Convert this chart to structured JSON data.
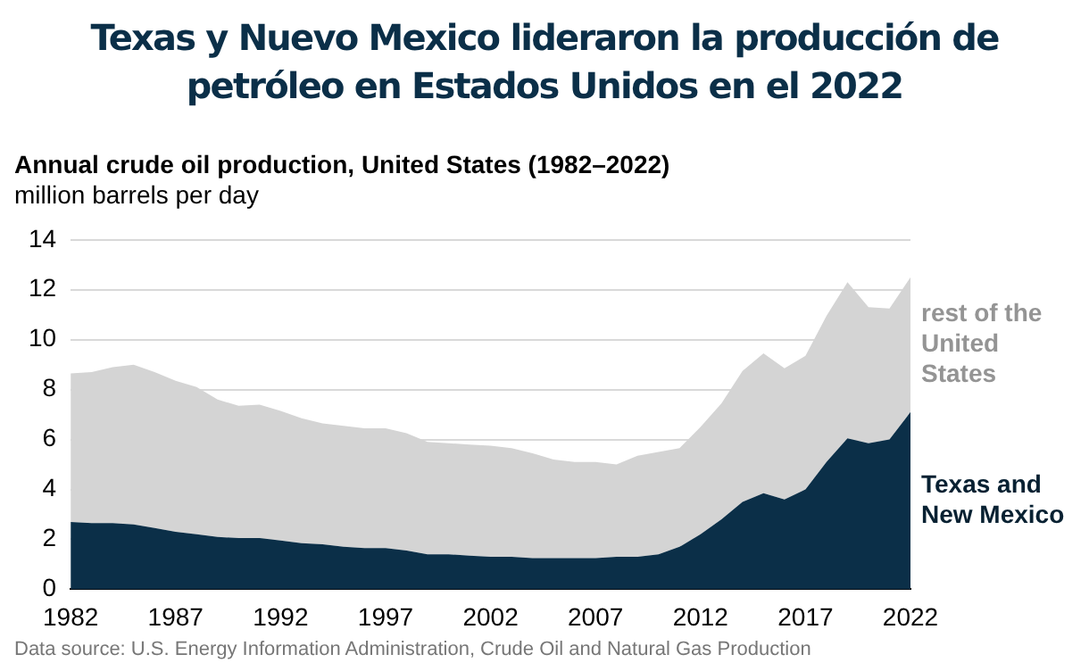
{
  "chart_data": {
    "type": "area",
    "stacked": true,
    "title": "Texas y Nuevo Mexico lideraron la producción de petróleo en Estados Unidos en el 2022",
    "subtitle": "Annual crude oil production, United States (1982–2022)",
    "ylabel": "million barrels per day",
    "annotations": [
      "Data source: U.S. Energy Information Administration, Crude Oil and Natural Gas Production"
    ],
    "x": [
      1982,
      1983,
      1984,
      1985,
      1986,
      1987,
      1988,
      1989,
      1990,
      1991,
      1992,
      1993,
      1994,
      1995,
      1996,
      1997,
      1998,
      1999,
      2000,
      2001,
      2002,
      2003,
      2004,
      2005,
      2006,
      2007,
      2008,
      2009,
      2010,
      2011,
      2012,
      2013,
      2014,
      2015,
      2016,
      2017,
      2018,
      2019,
      2020,
      2021,
      2022
    ],
    "series": [
      {
        "name": "Texas and New Mexico",
        "color": "#0b2f48",
        "values": [
          2.7,
          2.65,
          2.65,
          2.6,
          2.45,
          2.3,
          2.2,
          2.1,
          2.05,
          2.05,
          1.95,
          1.85,
          1.8,
          1.7,
          1.65,
          1.65,
          1.55,
          1.4,
          1.4,
          1.35,
          1.3,
          1.3,
          1.25,
          1.25,
          1.25,
          1.25,
          1.3,
          1.3,
          1.4,
          1.7,
          2.2,
          2.8,
          3.5,
          3.85,
          3.6,
          4.0,
          5.1,
          6.05,
          5.85,
          6.0,
          7.1
        ]
      },
      {
        "name": "rest of the United States",
        "color": "#d4d4d4",
        "values": [
          5.95,
          6.05,
          6.25,
          6.4,
          6.25,
          6.05,
          5.9,
          5.5,
          5.3,
          5.35,
          5.2,
          5.0,
          4.85,
          4.85,
          4.8,
          4.8,
          4.7,
          4.5,
          4.45,
          4.45,
          4.45,
          4.35,
          4.2,
          3.95,
          3.85,
          3.85,
          3.7,
          4.05,
          4.1,
          3.95,
          4.3,
          4.65,
          5.25,
          5.6,
          5.25,
          5.35,
          5.85,
          6.25,
          5.45,
          5.25,
          5.4
        ]
      }
    ],
    "xlim": [
      1982,
      2022
    ],
    "xticks": [
      1982,
      1987,
      1992,
      1997,
      2002,
      2007,
      2012,
      2017,
      2022
    ],
    "ylim": [
      0,
      14
    ],
    "yticks": [
      0,
      2,
      4,
      6,
      8,
      10,
      12,
      14
    ],
    "grid": "y",
    "legend": false
  }
}
